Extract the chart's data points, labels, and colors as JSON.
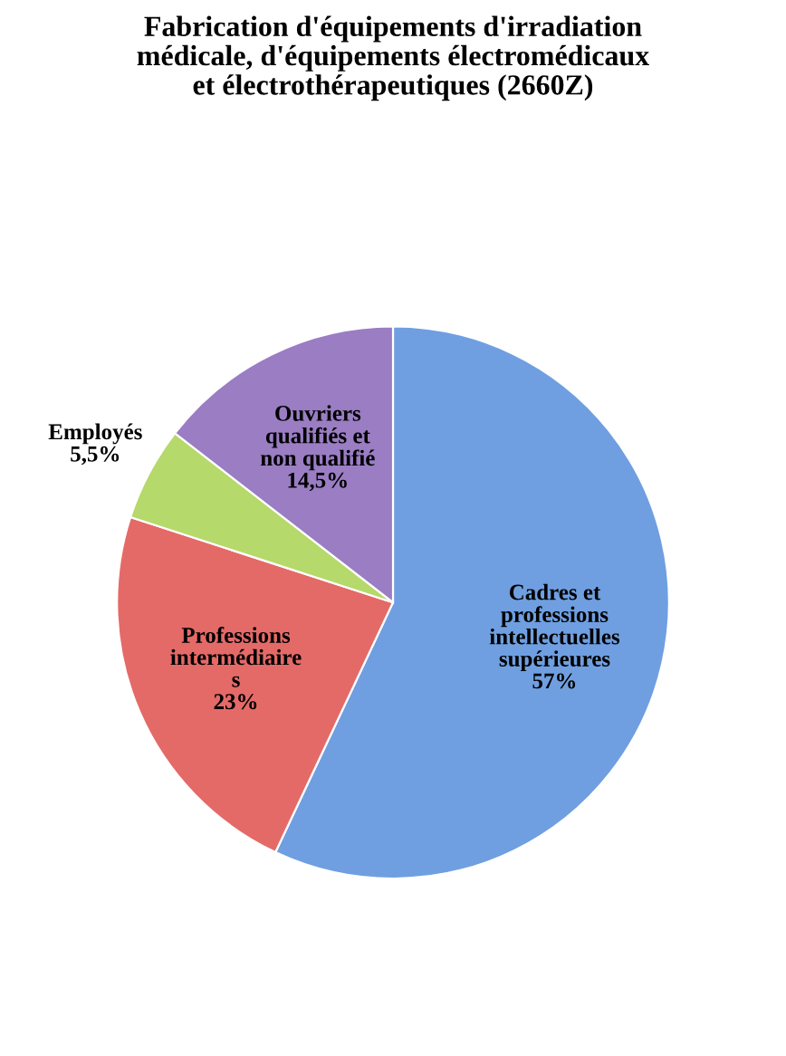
{
  "chart_data": {
    "type": "pie",
    "title": "Fabrication d'équipements d'irradiation\nmédicale, d'équipements électromédicaux\net électrothérapeutiques (2660Z)",
    "categories": [
      "Cadres et\nprofessions\nintellectuelles\nsupérieures",
      "Professions\nintermédiaire\ns",
      "Employés",
      "Ouvriers\nqualifiés et\nnon qualifié"
    ],
    "values": [
      57,
      23,
      5.5,
      14.5
    ],
    "value_labels": [
      "57%",
      "23%",
      "5,5%",
      "14,5%"
    ],
    "colors": [
      "#6f9fe0",
      "#e46a68",
      "#b5d96a",
      "#9a7dc3"
    ],
    "legend": false
  }
}
